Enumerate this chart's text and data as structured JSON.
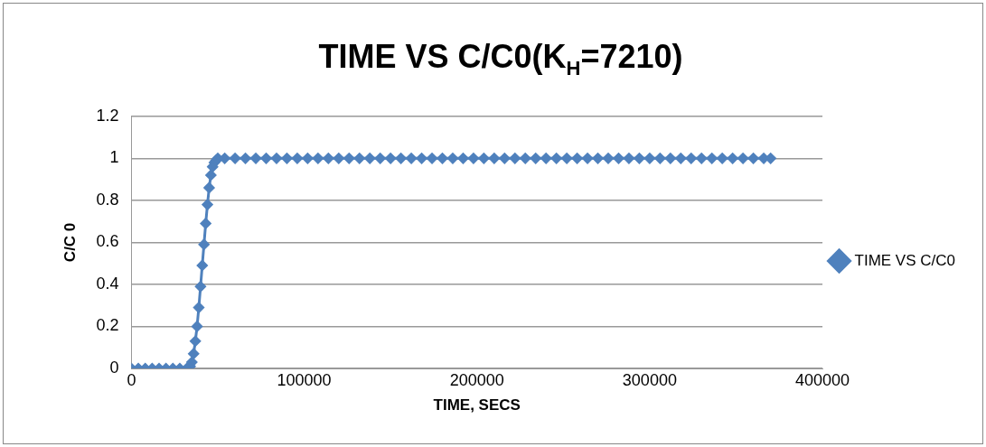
{
  "chart_data": {
    "type": "line",
    "title": "TIME VS C/C0(K$_{H}$=7210)",
    "xlabel": "TIME, SECS",
    "ylabel": "C/C 0",
    "xlim": [
      0,
      400000
    ],
    "xticks": [
      0,
      100000,
      200000,
      300000,
      400000
    ],
    "ylim": [
      0,
      1.2
    ],
    "yticks": [
      0,
      0.2,
      0.4,
      0.6,
      0.8,
      1,
      1.2
    ],
    "grid": "y",
    "legend": "right",
    "marker": "diamond",
    "line_style": "solid",
    "series": [
      {
        "name": "TIME VS C/C0",
        "color": "#4f81bd",
        "x": [
          0,
          4000,
          8000,
          12000,
          16000,
          20000,
          24000,
          28000,
          32000,
          34000,
          35000,
          36000,
          37000,
          38000,
          39000,
          40000,
          41000,
          42000,
          43000,
          44000,
          45000,
          46000,
          47000,
          48000,
          49000,
          50000,
          54000,
          60000,
          66000,
          72000,
          78000,
          84000,
          90000,
          96000,
          102000,
          108000,
          114000,
          120000,
          126000,
          132000,
          138000,
          144000,
          150000,
          156000,
          162000,
          168000,
          174000,
          180000,
          186000,
          192000,
          198000,
          204000,
          210000,
          216000,
          222000,
          228000,
          234000,
          240000,
          246000,
          252000,
          258000,
          264000,
          270000,
          276000,
          282000,
          288000,
          294000,
          300000,
          306000,
          312000,
          318000,
          324000,
          330000,
          336000,
          342000,
          348000,
          354000,
          360000,
          366000,
          370000
        ],
        "values": [
          0,
          0,
          0,
          0,
          0,
          0,
          0,
          0,
          0,
          0.01,
          0.03,
          0.07,
          0.13,
          0.2,
          0.29,
          0.39,
          0.49,
          0.59,
          0.69,
          0.78,
          0.86,
          0.92,
          0.96,
          0.98,
          0.99,
          1,
          1,
          1,
          1,
          1,
          1,
          1,
          1,
          1,
          1,
          1,
          1,
          1,
          1,
          1,
          1,
          1,
          1,
          1,
          1,
          1,
          1,
          1,
          1,
          1,
          1,
          1,
          1,
          1,
          1,
          1,
          1,
          1,
          1,
          1,
          1,
          1,
          1,
          1,
          1,
          1,
          1,
          1,
          1,
          1,
          1,
          1,
          1,
          1,
          1,
          1,
          1,
          1,
          1,
          1
        ]
      }
    ]
  }
}
